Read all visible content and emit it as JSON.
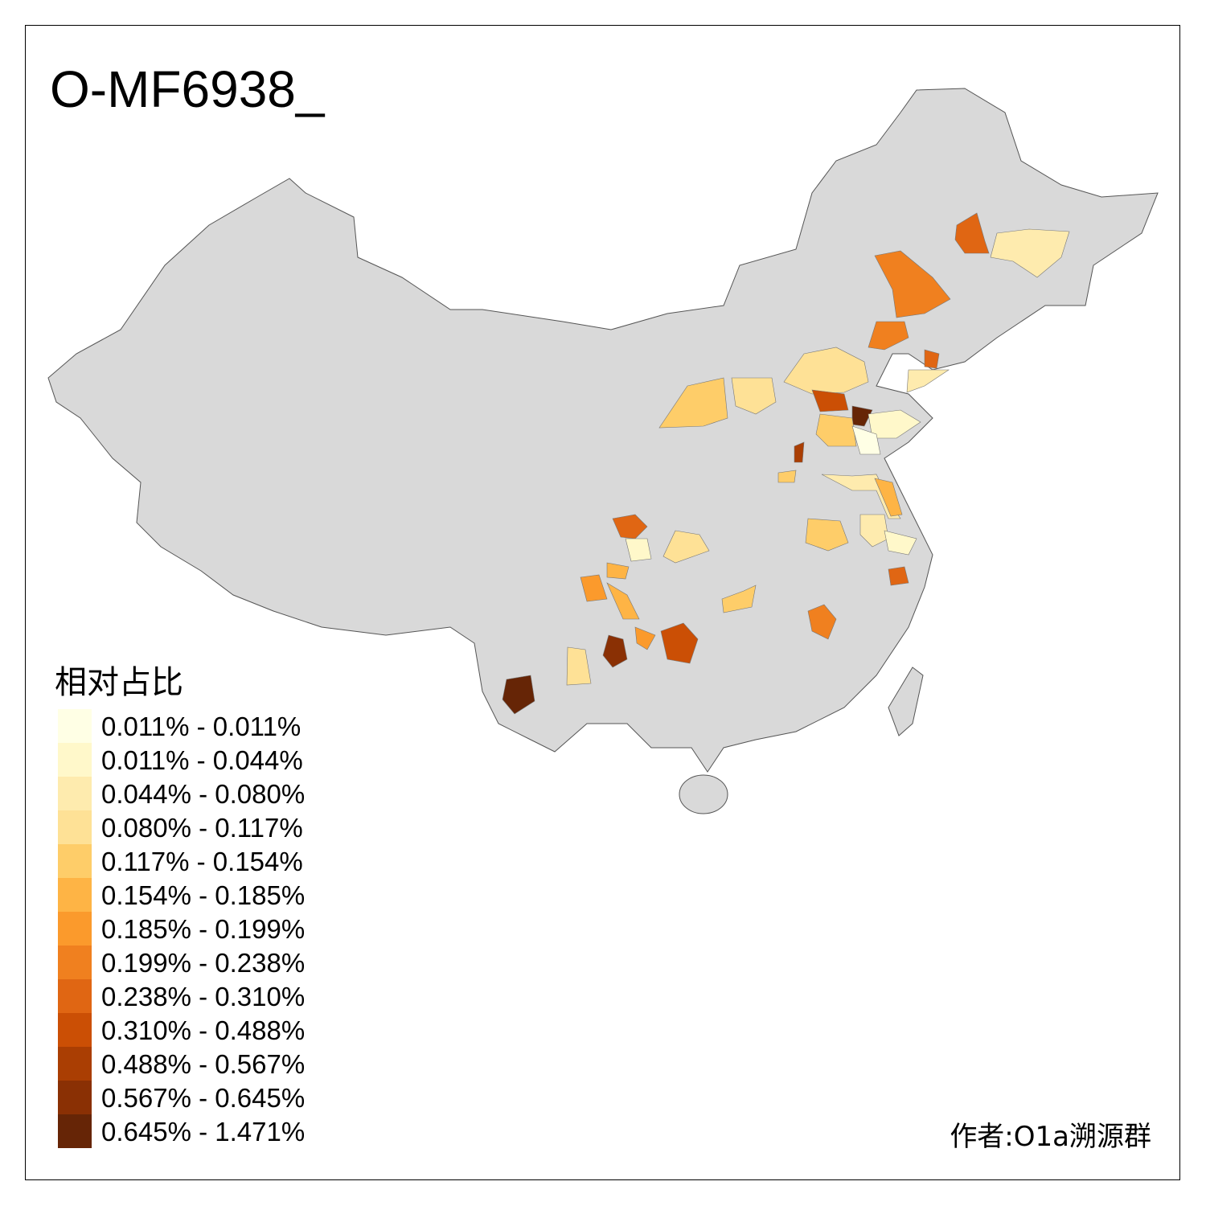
{
  "title": "O-MF6938_",
  "legend": {
    "title": "相对占比",
    "items": [
      {
        "label": "0.011% - 0.011%",
        "color": "#FFFFE5"
      },
      {
        "label": "0.011% - 0.044%",
        "color": "#FFF8CA"
      },
      {
        "label": "0.044% - 0.080%",
        "color": "#FEEBAE"
      },
      {
        "label": "0.080% - 0.117%",
        "color": "#FEE196"
      },
      {
        "label": "0.117% - 0.154%",
        "color": "#FECD69"
      },
      {
        "label": "0.154% - 0.185%",
        "color": "#FEB445"
      },
      {
        "label": "0.185% - 0.199%",
        "color": "#FB9A2C"
      },
      {
        "label": "0.199% - 0.238%",
        "color": "#F0801F"
      },
      {
        "label": "0.238% - 0.310%",
        "color": "#E06613"
      },
      {
        "label": "0.310% - 0.488%",
        "color": "#CB4F05"
      },
      {
        "label": "0.488% - 0.567%",
        "color": "#AA3E03"
      },
      {
        "label": "0.567% - 0.645%",
        "color": "#8A3004"
      },
      {
        "label": "0.645% - 1.471%",
        "color": "#662506"
      }
    ]
  },
  "map": {
    "base_color": "#D9D9D9",
    "border_color": "#555555"
  },
  "credit": "作者:O1a溯源群"
}
